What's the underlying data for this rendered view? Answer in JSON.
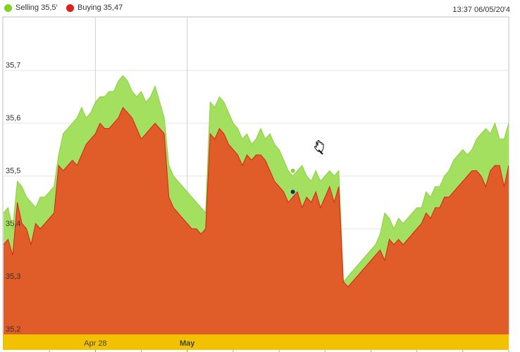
{
  "legend": {
    "selling_label": "Selling 35,5′",
    "buying_label": "Buying 35,47",
    "selling_color": "#7fd320",
    "buying_color": "#e0201a"
  },
  "timestamp": "13:37 06/05/20′4",
  "cursor_icon": "hand-pointer-icon",
  "chart_data": {
    "type": "area",
    "ylim": [
      35.2,
      35.8
    ],
    "yticks": [
      {
        "value": 35.2,
        "label": "35,2"
      },
      {
        "value": 35.3,
        "label": "35,3"
      },
      {
        "value": 35.4,
        "label": "35,4"
      },
      {
        "value": 35.5,
        "label": "35,5"
      },
      {
        "value": 35.6,
        "label": "35,6"
      },
      {
        "value": 35.7,
        "label": "35,7"
      }
    ],
    "xticks": [
      {
        "index": 20,
        "label": "Apr 28",
        "bold": false
      },
      {
        "index": 40,
        "label": "May",
        "bold": true
      }
    ],
    "grid": true,
    "series": [
      {
        "name": "Selling",
        "color": "#a3e060",
        "line_color": "#8ccf3a",
        "values": [
          35.43,
          35.44,
          35.4,
          35.49,
          35.48,
          35.46,
          35.45,
          35.44,
          35.46,
          35.46,
          35.47,
          35.48,
          35.54,
          35.58,
          35.59,
          35.6,
          35.61,
          35.63,
          35.61,
          35.62,
          35.64,
          35.65,
          35.65,
          35.66,
          35.66,
          35.68,
          35.69,
          35.68,
          35.66,
          35.65,
          35.66,
          35.64,
          35.65,
          35.67,
          35.64,
          35.61,
          35.52,
          35.5,
          35.49,
          35.48,
          35.47,
          35.46,
          35.45,
          35.44,
          35.43,
          35.64,
          35.63,
          35.65,
          35.64,
          35.62,
          35.6,
          35.59,
          35.57,
          35.58,
          35.56,
          35.57,
          35.59,
          35.57,
          35.58,
          35.56,
          35.55,
          35.53,
          35.51,
          35.5,
          35.51,
          35.52,
          35.5,
          35.49,
          35.51,
          35.49,
          35.5,
          35.51,
          35.5,
          35.51,
          35.3,
          35.31,
          35.32,
          35.33,
          35.34,
          35.35,
          35.36,
          35.37,
          35.39,
          35.43,
          35.42,
          35.4,
          35.42,
          35.41,
          35.42,
          35.43,
          35.44,
          35.44,
          35.47,
          35.46,
          35.48,
          35.48,
          35.5,
          35.51,
          35.53,
          35.54,
          35.55,
          35.54,
          35.55,
          35.57,
          35.58,
          35.59,
          35.58,
          35.6,
          35.57,
          35.57,
          35.6
        ],
        "current": 35.51
      },
      {
        "name": "Buying",
        "color": "#e05c28",
        "line_color": "#d9221a",
        "values": [
          35.37,
          35.38,
          35.35,
          35.45,
          35.41,
          35.4,
          35.37,
          35.41,
          35.4,
          35.41,
          35.42,
          35.43,
          35.52,
          35.51,
          35.52,
          35.53,
          35.52,
          35.54,
          35.56,
          35.57,
          35.58,
          35.6,
          35.59,
          35.59,
          35.6,
          35.61,
          35.63,
          35.62,
          35.61,
          35.59,
          35.57,
          35.58,
          35.59,
          35.6,
          35.59,
          35.58,
          35.46,
          35.44,
          35.43,
          35.42,
          35.41,
          35.4,
          35.4,
          35.39,
          35.4,
          35.58,
          35.57,
          35.59,
          35.58,
          35.56,
          35.55,
          35.54,
          35.52,
          35.54,
          35.53,
          35.54,
          35.54,
          35.53,
          35.51,
          35.49,
          35.48,
          35.47,
          35.45,
          35.46,
          35.47,
          35.44,
          35.46,
          35.45,
          35.47,
          35.44,
          35.46,
          35.48,
          35.45,
          35.48,
          35.3,
          35.29,
          35.3,
          35.31,
          35.32,
          35.33,
          35.34,
          35.35,
          35.36,
          35.34,
          35.38,
          35.37,
          35.38,
          35.37,
          35.38,
          35.39,
          35.4,
          35.41,
          35.43,
          35.42,
          35.44,
          35.44,
          35.46,
          35.46,
          35.47,
          35.48,
          35.49,
          35.5,
          35.51,
          35.51,
          35.5,
          35.48,
          35.51,
          35.52,
          35.52,
          35.48,
          35.52
        ],
        "current": 35.47
      }
    ]
  }
}
